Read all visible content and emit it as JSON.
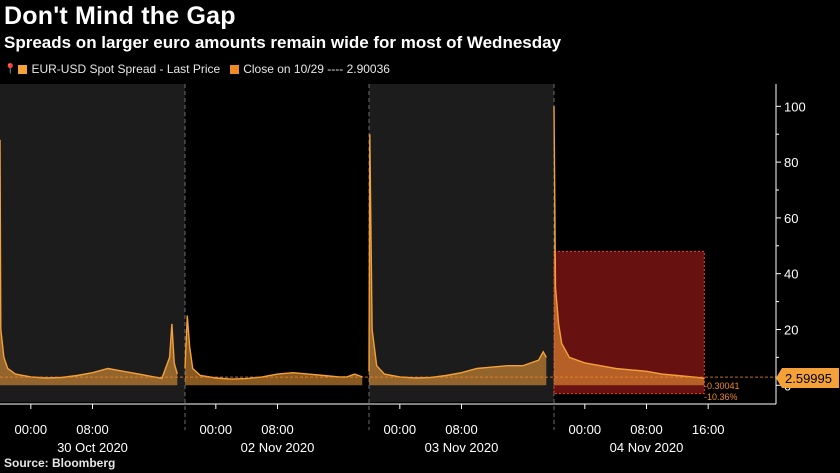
{
  "header": {
    "title": "Don't Mind the Gap",
    "subtitle": "Spreads on larger euro amounts remain wide for most of Wednesday"
  },
  "legend": {
    "series_label": "EUR-USD Spot Spread - Last Price",
    "close_label": "Close on 10/29 ---- 2.90036"
  },
  "footer": {
    "source": "Source: Bloomberg"
  },
  "colors": {
    "background": "#000000",
    "panel_shade": "#1c1c1c",
    "line": "#f5a13a",
    "highlight_fill": "#7a1414",
    "highlight_border": "#e8452c",
    "close_line": "#f08a24"
  },
  "chart_data": {
    "type": "line",
    "title": "Don't Mind the Gap",
    "subtitle": "Spreads on larger euro amounts remain wide for most of Wednesday",
    "ylabel": "",
    "ylim": [
      -6,
      108
    ],
    "y_ticks": [
      0,
      20,
      40,
      60,
      80,
      100
    ],
    "y_axis_position": "right",
    "grid": false,
    "legend_position": "top-left",
    "x_time_labels": [
      {
        "day": 0,
        "hour": 0,
        "label": "00:00"
      },
      {
        "day": 0,
        "hour": 8,
        "label": "08:00"
      },
      {
        "day": 1,
        "hour": 0,
        "label": "00:00"
      },
      {
        "day": 1,
        "hour": 8,
        "label": "08:00"
      },
      {
        "day": 2,
        "hour": 0,
        "label": "00:00"
      },
      {
        "day": 2,
        "hour": 8,
        "label": "08:00"
      },
      {
        "day": 3,
        "hour": 0,
        "label": "00:00"
      },
      {
        "day": 3,
        "hour": 8,
        "label": "08:00"
      },
      {
        "day": 3,
        "hour": 16,
        "label": "16:00"
      }
    ],
    "x_date_labels": [
      "30 Oct 2020",
      "02 Nov 2020",
      "03 Nov 2020",
      "04 Nov 2020"
    ],
    "series": [
      {
        "name": "EUR-USD Spot Spread - Last Price",
        "color": "#f5a13a",
        "days": [
          {
            "date": "30 Oct 2020",
            "points": [
              [
                -4,
                88
              ],
              [
                -3.9,
                20
              ],
              [
                -3.5,
                10
              ],
              [
                -3,
                6
              ],
              [
                -2,
                4
              ],
              [
                0,
                3
              ],
              [
                2,
                2.6
              ],
              [
                4,
                2.8
              ],
              [
                6,
                3.5
              ],
              [
                8,
                4.5
              ],
              [
                10,
                6
              ],
              [
                12,
                5
              ],
              [
                14,
                4
              ],
              [
                16,
                3
              ],
              [
                17,
                2.5
              ],
              [
                18,
                10
              ],
              [
                18.3,
                22
              ],
              [
                18.6,
                8
              ],
              [
                19,
                4
              ]
            ]
          },
          {
            "date": "02 Nov 2020",
            "points": [
              [
                -4,
                6
              ],
              [
                -3.7,
                25
              ],
              [
                -3.4,
                14
              ],
              [
                -3,
                6
              ],
              [
                -2,
                3.5
              ],
              [
                0,
                2.6
              ],
              [
                2,
                2.2
              ],
              [
                4,
                2.4
              ],
              [
                6,
                3
              ],
              [
                8,
                4
              ],
              [
                10,
                4.5
              ],
              [
                12,
                4
              ],
              [
                14,
                3.5
              ],
              [
                16,
                3
              ],
              [
                17,
                3
              ],
              [
                18,
                4
              ],
              [
                19,
                3
              ]
            ]
          },
          {
            "date": "03 Nov 2020",
            "points": [
              [
                -4,
                5
              ],
              [
                -3.9,
                90
              ],
              [
                -3.6,
                20
              ],
              [
                -3,
                7
              ],
              [
                -2,
                4
              ],
              [
                0,
                3
              ],
              [
                2,
                2.6
              ],
              [
                4,
                2.8
              ],
              [
                6,
                3.5
              ],
              [
                8,
                4.5
              ],
              [
                10,
                6
              ],
              [
                12,
                6.5
              ],
              [
                14,
                7
              ],
              [
                16,
                7
              ],
              [
                17,
                8
              ],
              [
                18,
                9
              ],
              [
                18.6,
                12
              ],
              [
                19,
                10
              ]
            ]
          },
          {
            "date": "04 Nov 2020",
            "points": [
              [
                -4,
                100
              ],
              [
                -3.8,
                35
              ],
              [
                -3.4,
                22
              ],
              [
                -3,
                15
              ],
              [
                -2,
                10
              ],
              [
                0,
                8
              ],
              [
                2,
                7
              ],
              [
                4,
                6
              ],
              [
                6,
                5.5
              ],
              [
                8,
                5
              ],
              [
                10,
                4
              ],
              [
                12,
                3.5
              ],
              [
                14,
                3
              ],
              [
                15.5,
                2.5
              ]
            ]
          }
        ]
      }
    ],
    "reference_lines": [
      {
        "label": "Close on 10/29",
        "value": 2.90036
      }
    ],
    "highlight_region": {
      "day": 3,
      "x_from_hour": -4,
      "x_to_hour": 15.5,
      "y_from": -3,
      "y_to": 48
    },
    "annotations": {
      "last_price": "2.59995",
      "change_abs": "-0.30041",
      "change_pct": "-10.36%"
    }
  }
}
